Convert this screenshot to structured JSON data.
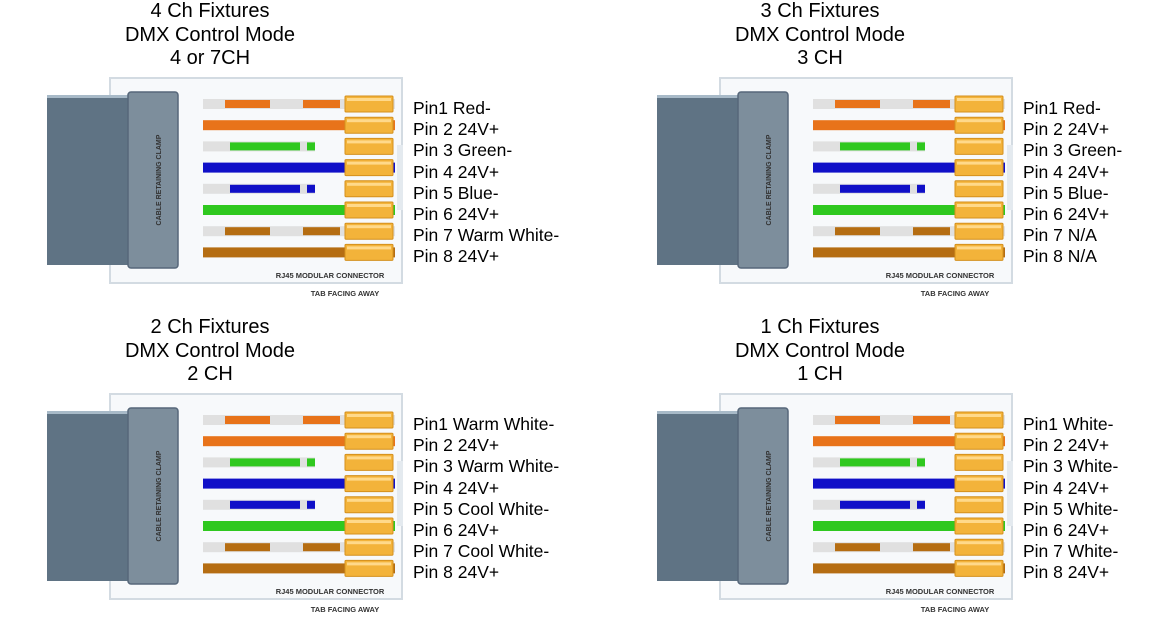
{
  "connector": {
    "clamp_label": "CABLE RETAINING CLAMP",
    "connector_label": "RJ45 MODULAR CONNECTOR",
    "tab_label": "TAB FACING AWAY"
  },
  "colors": {
    "orange": "#e8731a",
    "green": "#2fc81f",
    "blue": "#1010c8",
    "brown": "#b56d12",
    "white_stripe": "#e0e0e0",
    "contact_gold": "#f3b33a",
    "cable_jacket": "#5f7384",
    "clamp": "#7d8e9c"
  },
  "wires": [
    {
      "color": "orange",
      "striped": true
    },
    {
      "color": "orange",
      "striped": false
    },
    {
      "color": "green",
      "striped": true
    },
    {
      "color": "blue",
      "striped": false
    },
    {
      "color": "blue",
      "striped": true
    },
    {
      "color": "green",
      "striped": false
    },
    {
      "color": "brown",
      "striped": true
    },
    {
      "color": "brown",
      "striped": false
    }
  ],
  "panels": [
    {
      "title": [
        "4 Ch Fixtures",
        "DMX Control Mode",
        "4 or 7CH"
      ],
      "pins": [
        "Pin1 Red-",
        "Pin 2 24V+",
        "Pin 3 Green-",
        "Pin 4 24V+",
        "Pin 5 Blue-",
        "Pin 6 24V+",
        "Pin 7 Warm White-",
        "Pin 8 24V+"
      ]
    },
    {
      "title": [
        "3 Ch Fixtures",
        "DMX Control Mode",
        "3 CH"
      ],
      "pins": [
        "Pin1 Red-",
        "Pin 2 24V+",
        "Pin 3 Green-",
        "Pin 4 24V+",
        "Pin 5 Blue-",
        "Pin 6 24V+",
        "Pin 7 N/A",
        "Pin 8 N/A"
      ]
    },
    {
      "title": [
        "2 Ch Fixtures",
        "DMX Control Mode",
        "2 CH"
      ],
      "pins": [
        "Pin1 Warm White-",
        "Pin 2 24V+",
        "Pin 3 Warm White-",
        "Pin 4 24V+",
        "Pin 5 Cool White-",
        "Pin 6 24V+",
        "Pin 7 Cool White-",
        "Pin 8 24V+"
      ]
    },
    {
      "title": [
        "1 Ch Fixtures",
        "DMX Control Mode",
        "1 CH"
      ],
      "pins": [
        "Pin1 White-",
        "Pin 2 24V+",
        "Pin 3 White-",
        "Pin 4 24V+",
        "Pin 5 White-",
        "Pin 6 24V+",
        "Pin 7 White-",
        "Pin 8 24V+"
      ]
    }
  ]
}
